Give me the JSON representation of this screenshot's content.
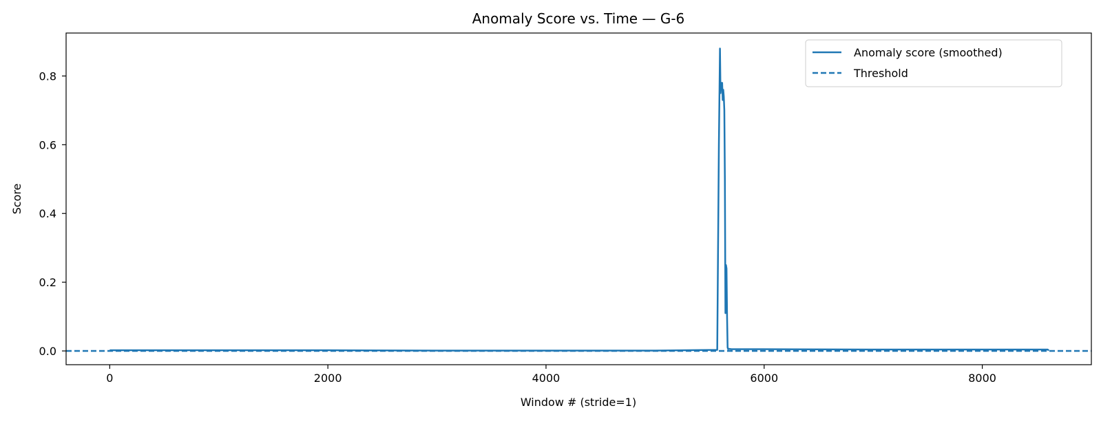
{
  "chart_data": {
    "type": "line",
    "title": "Anomaly Score vs. Time — G-6",
    "xlabel": "Window # (stride=1)",
    "ylabel": "Score",
    "xlim": [
      -400,
      9000
    ],
    "ylim": [
      -0.04,
      0.925
    ],
    "xticks": [
      0,
      2000,
      4000,
      6000,
      8000
    ],
    "xtick_labels": [
      "0",
      "2000",
      "4000",
      "6000",
      "8000"
    ],
    "yticks": [
      0.0,
      0.2,
      0.4,
      0.6,
      0.8
    ],
    "ytick_labels": [
      "0.0",
      "0.2",
      "0.4",
      "0.6",
      "0.8"
    ],
    "grid": false,
    "legend_position": "top-right",
    "color": "#1f77b4",
    "series": [
      {
        "name": "Anomaly score (smoothed)",
        "style": "solid",
        "x": [
          0,
          1000,
          2000,
          3000,
          4000,
          5000,
          5570,
          5585,
          5595,
          5600,
          5605,
          5610,
          5615,
          5620,
          5625,
          5630,
          5635,
          5640,
          5645,
          5650,
          5655,
          5660,
          5665,
          5670,
          5675,
          5680,
          5700,
          6000,
          7000,
          8000,
          8600,
          8610
        ],
        "y": [
          0.002,
          0.002,
          0.002,
          0.001,
          0.001,
          0.001,
          0.003,
          0.6,
          0.88,
          0.75,
          0.78,
          0.76,
          0.78,
          0.73,
          0.76,
          0.74,
          0.7,
          0.5,
          0.11,
          0.25,
          0.24,
          0.1,
          0.01,
          0.005,
          0.006,
          0.006,
          0.005,
          0.005,
          0.004,
          0.004,
          0.004,
          0.001
        ]
      },
      {
        "name": "Threshold",
        "style": "dashed",
        "y_constant": 0.0
      }
    ]
  }
}
